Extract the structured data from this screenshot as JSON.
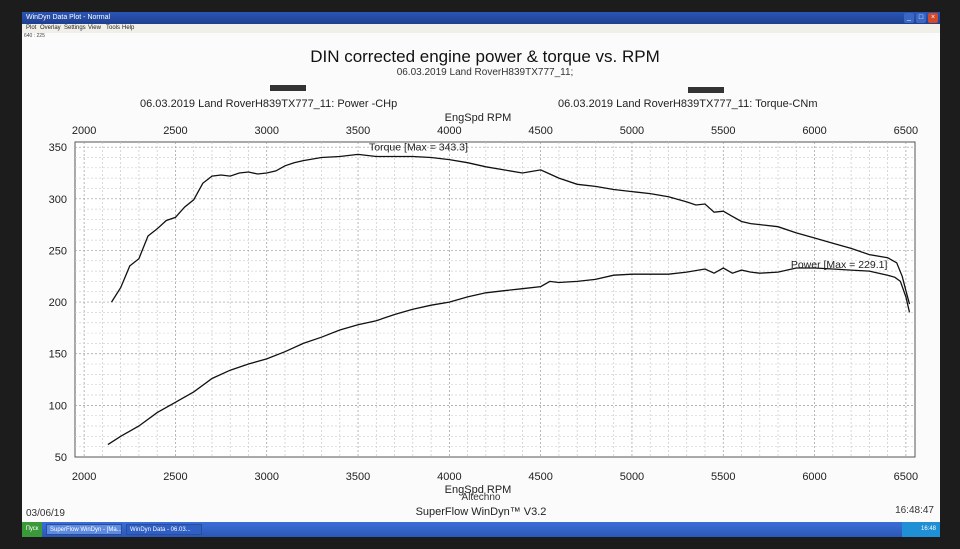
{
  "window": {
    "title": "WinDyn Data Plot - Normal"
  },
  "menu": [
    "Plot",
    "Overlay",
    "Settings",
    "View",
    "Tools",
    "Help"
  ],
  "header_small": "640 : 225",
  "chart_data": {
    "type": "line",
    "title": "DIN corrected engine power & torque vs. RPM",
    "subtitle": "06.03.2019 Land RoverH839TX777_11;",
    "xlabel": "EngSpd RPM",
    "xlim": [
      1950,
      6550
    ],
    "ylim": [
      50,
      355
    ],
    "x_ticks": [
      2000,
      2500,
      3000,
      3500,
      4000,
      4500,
      5000,
      5500,
      6000,
      6500
    ],
    "y_ticks": [
      50,
      100,
      150,
      200,
      250,
      300,
      350
    ],
    "legend": [
      {
        "label": "06.03.2019 Land RoverH839TX777_11: Power -CHp"
      },
      {
        "label": "06.03.2019 Land RoverH839TX777_11: Torque-CNm"
      }
    ],
    "annotations": [
      {
        "text": "Torque [Max = 343.3]",
        "x": 3560,
        "y": 343
      },
      {
        "text": "Power  [Max = 229.1]",
        "x": 5870,
        "y": 229
      }
    ],
    "grid": true,
    "series": [
      {
        "name": "Torque-CNm",
        "x": [
          2150,
          2200,
          2250,
          2300,
          2350,
          2400,
          2450,
          2500,
          2550,
          2600,
          2650,
          2700,
          2750,
          2800,
          2850,
          2900,
          2950,
          3000,
          3050,
          3100,
          3150,
          3200,
          3300,
          3400,
          3500,
          3600,
          3700,
          3800,
          3900,
          4000,
          4100,
          4200,
          4300,
          4400,
          4500,
          4550,
          4600,
          4700,
          4800,
          4900,
          5000,
          5100,
          5200,
          5300,
          5350,
          5400,
          5450,
          5500,
          5550,
          5600,
          5650,
          5700,
          5800,
          5900,
          6000,
          6100,
          6200,
          6300,
          6400,
          6450,
          6480,
          6500,
          6520
        ],
        "y": [
          200,
          214,
          235,
          242,
          264,
          271,
          279,
          282,
          292,
          299,
          315,
          322,
          323,
          322,
          325,
          326,
          324,
          325,
          327,
          332,
          335,
          337,
          340,
          341,
          343,
          341,
          341,
          341,
          340,
          338,
          335,
          331,
          328,
          325,
          328,
          324,
          320,
          314,
          312,
          309,
          307,
          305,
          302,
          297,
          294,
          295,
          287,
          288,
          283,
          278,
          276,
          275,
          273,
          267,
          262,
          257,
          252,
          246,
          243,
          238,
          225,
          211,
          198
        ]
      },
      {
        "name": "Power -CHp",
        "x": [
          2130,
          2200,
          2300,
          2400,
          2500,
          2600,
          2700,
          2800,
          2900,
          3000,
          3100,
          3200,
          3300,
          3400,
          3500,
          3600,
          3700,
          3800,
          3900,
          4000,
          4100,
          4200,
          4300,
          4400,
          4500,
          4550,
          4600,
          4700,
          4800,
          4900,
          5000,
          5100,
          5200,
          5300,
          5400,
          5450,
          5500,
          5550,
          5600,
          5650,
          5700,
          5800,
          5900,
          6000,
          6100,
          6200,
          6300,
          6400,
          6440,
          6470,
          6500,
          6520
        ],
        "y": [
          62,
          70,
          80,
          93,
          103,
          113,
          126,
          134,
          140,
          145,
          152,
          160,
          166,
          173,
          178,
          182,
          188,
          193,
          197,
          200,
          205,
          209,
          211,
          213,
          215,
          220,
          219,
          220,
          222,
          226,
          227,
          227,
          227,
          229,
          232,
          228,
          233,
          228,
          231,
          229,
          228,
          229,
          233,
          233,
          232,
          231,
          230,
          226,
          224,
          220,
          205,
          190
        ]
      }
    ]
  },
  "footer": {
    "left_date": "03/06/19",
    "brand": "Altechno",
    "product": "SuperFlow WinDyn™ V3.2",
    "time": "16:48:47"
  },
  "taskbar": {
    "start": "Пуск",
    "items": [
      "SuperFlow WinDyn - [Ma...",
      "WinDyn Data - 06.03..."
    ],
    "clock": "16:48"
  }
}
